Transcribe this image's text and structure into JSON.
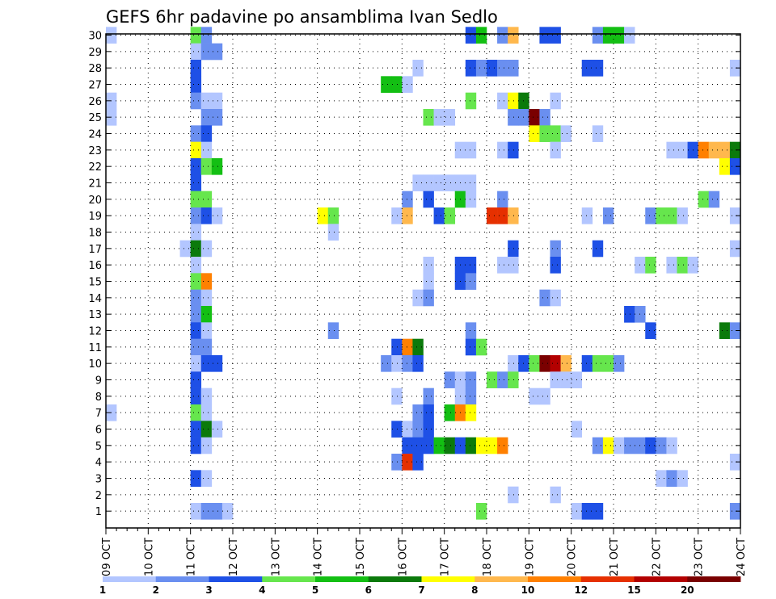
{
  "chart_data": {
    "type": "heatmap",
    "title": "GEFS 6hr padavine po ansamblima Ivan Sedlo",
    "x_ticks": [
      "09 OCT",
      "10 OCT",
      "11 OCT",
      "12 OCT",
      "13 OCT",
      "14 OCT",
      "15 OCT",
      "16 OCT",
      "17 OCT",
      "18 OCT",
      "19 OCT",
      "20 OCT",
      "21 OCT",
      "22 OCT",
      "23 OCT",
      "24 OCT"
    ],
    "y_ticks": [
      "1",
      "2",
      "3",
      "4",
      "5",
      "6",
      "7",
      "8",
      "9",
      "10",
      "11",
      "12",
      "13",
      "14",
      "15",
      "16",
      "17",
      "18",
      "19",
      "20",
      "21",
      "22",
      "23",
      "24",
      "25",
      "26",
      "27",
      "28",
      "29",
      "30"
    ],
    "xlim": [
      0,
      60
    ],
    "ylim": [
      0,
      30
    ],
    "x_unit": "6-hour steps from 09 OCT 00Z",
    "grid": true,
    "colorbar": {
      "labels": [
        "1",
        "2",
        "3",
        "4",
        "5",
        "6",
        "7",
        "8",
        "10",
        "12",
        "15",
        "20"
      ],
      "colors": [
        "#b3c6ff",
        "#6a8ff0",
        "#1e50e6",
        "#66e64d",
        "#13bf13",
        "#0b7a0b",
        "#ffff00",
        "#ffb84d",
        "#ff8000",
        "#e63000",
        "#b30000",
        "#7a0000"
      ]
    },
    "cells": [
      [
        0.5,
        30,
        0
      ],
      [
        8.5,
        30,
        3
      ],
      [
        9.5,
        30,
        1
      ],
      [
        34.5,
        30,
        2
      ],
      [
        35.5,
        30,
        4
      ],
      [
        37.5,
        30,
        1
      ],
      [
        38.5,
        30,
        7
      ],
      [
        41.5,
        30,
        2
      ],
      [
        42.5,
        30,
        2
      ],
      [
        46.5,
        30,
        1
      ],
      [
        47.5,
        30,
        4
      ],
      [
        48.5,
        30,
        4
      ],
      [
        49.5,
        30,
        0
      ],
      [
        8.5,
        29,
        0
      ],
      [
        9.5,
        29,
        1
      ],
      [
        10.5,
        29,
        1
      ],
      [
        8.5,
        28,
        2
      ],
      [
        29.5,
        28,
        0
      ],
      [
        34.5,
        28,
        2
      ],
      [
        35.5,
        28,
        1
      ],
      [
        36.5,
        28,
        2
      ],
      [
        37.5,
        28,
        1
      ],
      [
        38.5,
        28,
        1
      ],
      [
        45.5,
        28,
        2
      ],
      [
        46.5,
        28,
        2
      ],
      [
        59.5,
        28,
        0
      ],
      [
        8.5,
        27,
        2
      ],
      [
        26.5,
        27,
        4
      ],
      [
        27.5,
        27,
        4
      ],
      [
        28.5,
        27,
        0
      ],
      [
        0.5,
        26,
        0
      ],
      [
        8.5,
        26,
        1
      ],
      [
        9.5,
        26,
        0
      ],
      [
        10.5,
        26,
        0
      ],
      [
        34.5,
        26,
        3
      ],
      [
        37.5,
        26,
        0
      ],
      [
        38.5,
        26,
        6
      ],
      [
        39.5,
        26,
        5
      ],
      [
        42.5,
        26,
        0
      ],
      [
        0.5,
        25,
        0
      ],
      [
        9.5,
        25,
        1
      ],
      [
        10.5,
        25,
        1
      ],
      [
        30.5,
        25,
        3
      ],
      [
        31.5,
        25,
        0
      ],
      [
        32.5,
        25,
        0
      ],
      [
        38.5,
        25,
        1
      ],
      [
        39.5,
        25,
        1
      ],
      [
        40.5,
        25,
        11
      ],
      [
        41.5,
        25,
        1
      ],
      [
        8.5,
        24,
        1
      ],
      [
        9.5,
        24,
        2
      ],
      [
        40.5,
        24,
        6
      ],
      [
        41.5,
        24,
        3
      ],
      [
        42.5,
        24,
        3
      ],
      [
        43.5,
        24,
        0
      ],
      [
        46.5,
        24,
        0
      ],
      [
        8.5,
        23,
        6
      ],
      [
        9.5,
        23,
        0
      ],
      [
        33.5,
        23,
        0
      ],
      [
        34.5,
        23,
        0
      ],
      [
        37.5,
        23,
        0
      ],
      [
        38.5,
        23,
        2
      ],
      [
        42.5,
        23,
        0
      ],
      [
        53.5,
        23,
        0
      ],
      [
        54.5,
        23,
        0
      ],
      [
        55.5,
        23,
        2
      ],
      [
        56.5,
        23,
        8
      ],
      [
        57.5,
        23,
        7
      ],
      [
        58.5,
        23,
        7
      ],
      [
        59.5,
        23,
        5
      ],
      [
        8.5,
        22,
        2
      ],
      [
        9.5,
        22,
        3
      ],
      [
        10.5,
        22,
        4
      ],
      [
        58.5,
        22,
        6
      ],
      [
        59.5,
        22,
        2
      ],
      [
        8.5,
        21,
        2
      ],
      [
        29.5,
        21,
        0
      ],
      [
        30.5,
        21,
        0
      ],
      [
        31.5,
        21,
        0
      ],
      [
        32.5,
        21,
        0
      ],
      [
        33.5,
        21,
        0
      ],
      [
        34.5,
        21,
        0
      ],
      [
        8.5,
        20,
        3
      ],
      [
        9.5,
        20,
        3
      ],
      [
        28.5,
        20,
        1
      ],
      [
        30.5,
        20,
        2
      ],
      [
        33.5,
        20,
        4
      ],
      [
        34.5,
        20,
        0
      ],
      [
        37.5,
        20,
        1
      ],
      [
        56.5,
        20,
        3
      ],
      [
        57.5,
        20,
        1
      ],
      [
        8.5,
        19,
        1
      ],
      [
        9.5,
        19,
        2
      ],
      [
        10.5,
        19,
        0
      ],
      [
        20.5,
        19,
        6
      ],
      [
        21.5,
        19,
        3
      ],
      [
        27.5,
        19,
        0
      ],
      [
        28.5,
        19,
        7
      ],
      [
        31.5,
        19,
        2
      ],
      [
        32.5,
        19,
        3
      ],
      [
        36.5,
        19,
        9
      ],
      [
        37.5,
        19,
        9
      ],
      [
        38.5,
        19,
        7
      ],
      [
        45.5,
        19,
        0
      ],
      [
        47.5,
        19,
        1
      ],
      [
        51.5,
        19,
        1
      ],
      [
        52.5,
        19,
        3
      ],
      [
        53.5,
        19,
        3
      ],
      [
        54.5,
        19,
        0
      ],
      [
        59.5,
        19,
        0
      ],
      [
        8.5,
        18,
        0
      ],
      [
        21.5,
        18,
        0
      ],
      [
        7.5,
        17,
        0
      ],
      [
        8.5,
        17,
        5
      ],
      [
        9.5,
        17,
        0
      ],
      [
        38.5,
        17,
        2
      ],
      [
        42.5,
        17,
        1
      ],
      [
        46.5,
        17,
        2
      ],
      [
        59.5,
        17,
        0
      ],
      [
        8.5,
        16,
        0
      ],
      [
        30.5,
        16,
        0
      ],
      [
        33.5,
        16,
        2
      ],
      [
        34.5,
        16,
        2
      ],
      [
        37.5,
        16,
        0
      ],
      [
        38.5,
        16,
        0
      ],
      [
        42.5,
        16,
        2
      ],
      [
        50.5,
        16,
        0
      ],
      [
        51.5,
        16,
        3
      ],
      [
        53.5,
        16,
        0
      ],
      [
        54.5,
        16,
        3
      ],
      [
        55.5,
        16,
        0
      ],
      [
        8.5,
        15,
        3
      ],
      [
        9.5,
        15,
        8
      ],
      [
        30.5,
        15,
        0
      ],
      [
        33.5,
        15,
        2
      ],
      [
        34.5,
        15,
        1
      ],
      [
        8.5,
        14,
        1
      ],
      [
        9.5,
        14,
        0
      ],
      [
        29.5,
        14,
        0
      ],
      [
        30.5,
        14,
        1
      ],
      [
        41.5,
        14,
        1
      ],
      [
        42.5,
        14,
        0
      ],
      [
        8.5,
        13,
        1
      ],
      [
        9.5,
        13,
        4
      ],
      [
        49.5,
        13,
        2
      ],
      [
        50.5,
        13,
        1
      ],
      [
        8.5,
        12,
        2
      ],
      [
        9.5,
        12,
        0
      ],
      [
        21.5,
        12,
        1
      ],
      [
        34.5,
        12,
        1
      ],
      [
        51.5,
        12,
        2
      ],
      [
        58.5,
        12,
        5
      ],
      [
        59.5,
        12,
        1
      ],
      [
        8.5,
        11,
        1
      ],
      [
        9.5,
        11,
        1
      ],
      [
        27.5,
        11,
        2
      ],
      [
        28.5,
        11,
        8
      ],
      [
        29.5,
        11,
        5
      ],
      [
        34.5,
        11,
        2
      ],
      [
        35.5,
        11,
        3
      ],
      [
        8.5,
        10,
        0
      ],
      [
        9.5,
        10,
        2
      ],
      [
        10.5,
        10,
        2
      ],
      [
        26.5,
        10,
        1
      ],
      [
        27.5,
        10,
        0
      ],
      [
        28.5,
        10,
        1
      ],
      [
        29.5,
        10,
        2
      ],
      [
        38.5,
        10,
        0
      ],
      [
        39.5,
        10,
        2
      ],
      [
        40.5,
        10,
        3
      ],
      [
        41.5,
        10,
        11
      ],
      [
        42.5,
        10,
        10
      ],
      [
        43.5,
        10,
        7
      ],
      [
        45.5,
        10,
        2
      ],
      [
        46.5,
        10,
        3
      ],
      [
        47.5,
        10,
        3
      ],
      [
        48.5,
        10,
        1
      ],
      [
        8.5,
        9,
        2
      ],
      [
        32.5,
        9,
        1
      ],
      [
        33.5,
        9,
        0
      ],
      [
        34.5,
        9,
        1
      ],
      [
        36.5,
        9,
        3
      ],
      [
        37.5,
        9,
        1
      ],
      [
        38.5,
        9,
        3
      ],
      [
        42.5,
        9,
        0
      ],
      [
        43.5,
        9,
        0
      ],
      [
        44.5,
        9,
        0
      ],
      [
        8.5,
        8,
        2
      ],
      [
        9.5,
        8,
        0
      ],
      [
        27.5,
        8,
        0
      ],
      [
        30.5,
        8,
        1
      ],
      [
        33.5,
        8,
        0
      ],
      [
        34.5,
        8,
        1
      ],
      [
        40.5,
        8,
        0
      ],
      [
        41.5,
        8,
        0
      ],
      [
        0.5,
        7,
        0
      ],
      [
        8.5,
        7,
        3
      ],
      [
        9.5,
        7,
        0
      ],
      [
        29.5,
        7,
        1
      ],
      [
        30.5,
        7,
        2
      ],
      [
        32.5,
        7,
        4
      ],
      [
        33.5,
        7,
        8
      ],
      [
        34.5,
        7,
        6
      ],
      [
        8.5,
        6,
        2
      ],
      [
        9.5,
        6,
        5
      ],
      [
        10.5,
        6,
        0
      ],
      [
        27.5,
        6,
        2
      ],
      [
        28.5,
        6,
        0
      ],
      [
        29.5,
        6,
        1
      ],
      [
        30.5,
        6,
        2
      ],
      [
        44.5,
        6,
        0
      ],
      [
        8.5,
        5,
        2
      ],
      [
        9.5,
        5,
        0
      ],
      [
        28.5,
        5,
        2
      ],
      [
        29.5,
        5,
        2
      ],
      [
        30.5,
        5,
        2
      ],
      [
        31.5,
        5,
        4
      ],
      [
        32.5,
        5,
        5
      ],
      [
        33.5,
        5,
        2
      ],
      [
        34.5,
        5,
        5
      ],
      [
        35.5,
        5,
        6
      ],
      [
        36.5,
        5,
        6
      ],
      [
        37.5,
        5,
        8
      ],
      [
        46.5,
        5,
        1
      ],
      [
        47.5,
        5,
        6
      ],
      [
        48.5,
        5,
        0
      ],
      [
        49.5,
        5,
        1
      ],
      [
        50.5,
        5,
        1
      ],
      [
        51.5,
        5,
        2
      ],
      [
        52.5,
        5,
        1
      ],
      [
        53.5,
        5,
        0
      ],
      [
        27.5,
        4,
        1
      ],
      [
        28.5,
        4,
        9
      ],
      [
        29.5,
        4,
        2
      ],
      [
        59.5,
        4,
        0
      ],
      [
        8.5,
        3,
        2
      ],
      [
        9.5,
        3,
        0
      ],
      [
        52.5,
        3,
        0
      ],
      [
        53.5,
        3,
        1
      ],
      [
        54.5,
        3,
        0
      ],
      [
        38.5,
        2,
        0
      ],
      [
        42.5,
        2,
        0
      ],
      [
        8.5,
        1,
        0
      ],
      [
        9.5,
        1,
        1
      ],
      [
        10.5,
        1,
        1
      ],
      [
        11.5,
        1,
        0
      ],
      [
        35.5,
        1,
        3
      ],
      [
        44.5,
        1,
        0
      ],
      [
        45.5,
        1,
        2
      ],
      [
        46.5,
        1,
        2
      ],
      [
        59.5,
        1,
        1
      ]
    ]
  }
}
